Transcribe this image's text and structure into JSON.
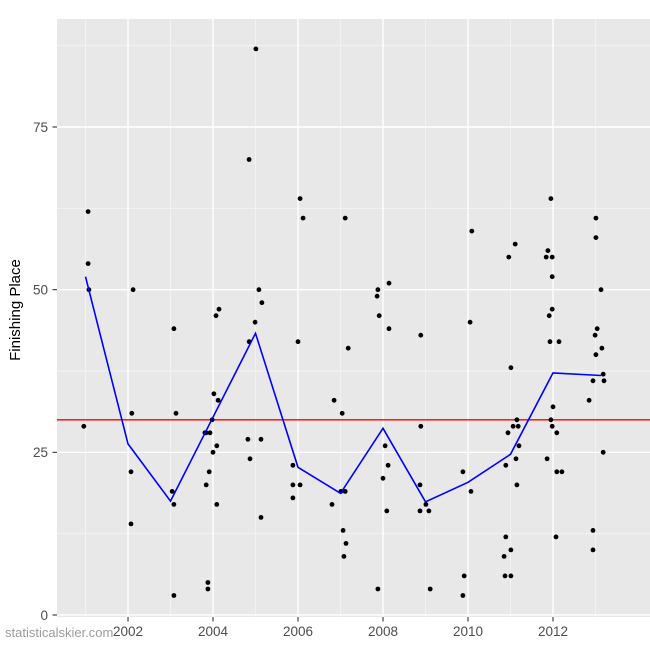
{
  "watermark": "statisticalskier.com",
  "chart_data": {
    "type": "scatter",
    "title": "",
    "xlabel": "",
    "ylabel": "Finishing Place",
    "legend": false,
    "grid": true,
    "panel_bg": "#E8E8E8",
    "grid_major_color": "#FFFFFF",
    "grid_minor_color": "#F4F4F4",
    "point_color": "#000000",
    "trend_color": "#0000FF",
    "reference_color": "#FF0000",
    "tick_color": "#333333",
    "tick_label_color": "#4d4d4d",
    "xlim": [
      2000.329,
      2014.282
    ],
    "ylim": [
      -0.31,
      91.6
    ],
    "x_ticks": [
      2002,
      2004,
      2006,
      2008,
      2010,
      2012
    ],
    "x_tick_labels": [
      "2002",
      "2004",
      "2006",
      "2008",
      "2010",
      "2012"
    ],
    "x_minor_ticks": [
      2001,
      2003,
      2005,
      2007,
      2009,
      2011,
      2013
    ],
    "y_ticks": [
      0,
      25,
      50,
      75
    ],
    "y_tick_labels": [
      "0",
      "25",
      "50",
      "75"
    ],
    "y_minor_ticks": [
      12.5,
      37.5,
      62.5,
      87.5
    ],
    "reference_line_y": 30,
    "trend_line": [
      [
        2001,
        52.0
      ],
      [
        2002,
        26.3
      ],
      [
        2003,
        17.5
      ],
      [
        2004,
        30.4
      ],
      [
        2005,
        43.3
      ],
      [
        2006,
        22.7
      ],
      [
        2007,
        18.7
      ],
      [
        2008,
        28.7
      ],
      [
        2009,
        17.4
      ],
      [
        2010,
        20.4
      ],
      [
        2011,
        24.7
      ],
      [
        2012,
        37.2
      ],
      [
        2013.13,
        36.8
      ]
    ],
    "points": [
      [
        2001.06,
        62
      ],
      [
        2001.06,
        54
      ],
      [
        2001.08,
        50
      ],
      [
        2000.96,
        29
      ],
      [
        2002.12,
        50
      ],
      [
        2002.09,
        31
      ],
      [
        2002.07,
        22
      ],
      [
        2002.07,
        14
      ],
      [
        2003.08,
        44
      ],
      [
        2003.13,
        31
      ],
      [
        2003.04,
        19
      ],
      [
        2003.08,
        17
      ],
      [
        2003.08,
        3
      ],
      [
        2004.14,
        47
      ],
      [
        2004.07,
        46
      ],
      [
        2004.02,
        34
      ],
      [
        2004.12,
        33
      ],
      [
        2003.98,
        30
      ],
      [
        2003.81,
        28
      ],
      [
        2003.93,
        28
      ],
      [
        2003.84,
        28
      ],
      [
        2004.09,
        26
      ],
      [
        2004.0,
        25
      ],
      [
        2003.91,
        22
      ],
      [
        2003.84,
        20
      ],
      [
        2004.09,
        17
      ],
      [
        2003.88,
        5
      ],
      [
        2003.88,
        4
      ],
      [
        2005.01,
        87
      ],
      [
        2004.85,
        70
      ],
      [
        2005.08,
        50
      ],
      [
        2005.15,
        48
      ],
      [
        2004.99,
        45
      ],
      [
        2004.85,
        42
      ],
      [
        2004.82,
        27
      ],
      [
        2005.13,
        27
      ],
      [
        2004.87,
        24
      ],
      [
        2005.13,
        15
      ],
      [
        2006.05,
        64
      ],
      [
        2006.12,
        61
      ],
      [
        2006.0,
        42
      ],
      [
        2005.88,
        23
      ],
      [
        2006.05,
        20
      ],
      [
        2005.88,
        20
      ],
      [
        2005.88,
        18
      ],
      [
        2007.11,
        61
      ],
      [
        2007.18,
        41
      ],
      [
        2006.85,
        33
      ],
      [
        2007.04,
        31
      ],
      [
        2007.01,
        19
      ],
      [
        2007.11,
        19
      ],
      [
        2006.8,
        17
      ],
      [
        2007.06,
        13
      ],
      [
        2007.13,
        11
      ],
      [
        2007.08,
        9
      ],
      [
        2008.14,
        51
      ],
      [
        2007.88,
        50
      ],
      [
        2007.86,
        49
      ],
      [
        2007.91,
        46
      ],
      [
        2008.14,
        44
      ],
      [
        2008.05,
        26
      ],
      [
        2008.12,
        23
      ],
      [
        2008.0,
        21
      ],
      [
        2008.09,
        16
      ],
      [
        2007.88,
        4
      ],
      [
        2008.89,
        43
      ],
      [
        2008.89,
        29
      ],
      [
        2008.87,
        20
      ],
      [
        2009.01,
        17
      ],
      [
        2008.87,
        16
      ],
      [
        2009.08,
        16
      ],
      [
        2009.11,
        4
      ],
      [
        2010.09,
        59
      ],
      [
        2010.05,
        45
      ],
      [
        2009.88,
        22
      ],
      [
        2010.07,
        19
      ],
      [
        2009.91,
        6
      ],
      [
        2009.88,
        3
      ],
      [
        2011.11,
        57
      ],
      [
        2010.96,
        55
      ],
      [
        2011.01,
        38
      ],
      [
        2011.15,
        30
      ],
      [
        2011.06,
        29
      ],
      [
        2011.18,
        29
      ],
      [
        2010.94,
        28
      ],
      [
        2011.2,
        26
      ],
      [
        2011.13,
        24
      ],
      [
        2010.89,
        23
      ],
      [
        2011.15,
        20
      ],
      [
        2010.89,
        12
      ],
      [
        2011.01,
        10
      ],
      [
        2010.85,
        9
      ],
      [
        2010.87,
        6
      ],
      [
        2011.01,
        6
      ],
      [
        2011.95,
        64
      ],
      [
        2011.88,
        56
      ],
      [
        2011.84,
        55
      ],
      [
        2011.98,
        55
      ],
      [
        2011.98,
        52
      ],
      [
        2011.98,
        47
      ],
      [
        2011.91,
        46
      ],
      [
        2011.93,
        42
      ],
      [
        2012.14,
        42
      ],
      [
        2012.0,
        32
      ],
      [
        2011.95,
        30
      ],
      [
        2011.98,
        29
      ],
      [
        2012.09,
        28
      ],
      [
        2011.86,
        24
      ],
      [
        2012.09,
        22
      ],
      [
        2012.21,
        22
      ],
      [
        2012.07,
        12
      ],
      [
        2013.01,
        61
      ],
      [
        2013.01,
        58
      ],
      [
        2013.13,
        50
      ],
      [
        2013.04,
        44
      ],
      [
        2012.99,
        43
      ],
      [
        2013.15,
        41
      ],
      [
        2013.01,
        40
      ],
      [
        2013.18,
        37
      ],
      [
        2012.94,
        36
      ],
      [
        2013.2,
        36
      ],
      [
        2012.85,
        33
      ],
      [
        2013.18,
        25
      ],
      [
        2012.94,
        13
      ],
      [
        2012.94,
        10
      ]
    ]
  }
}
